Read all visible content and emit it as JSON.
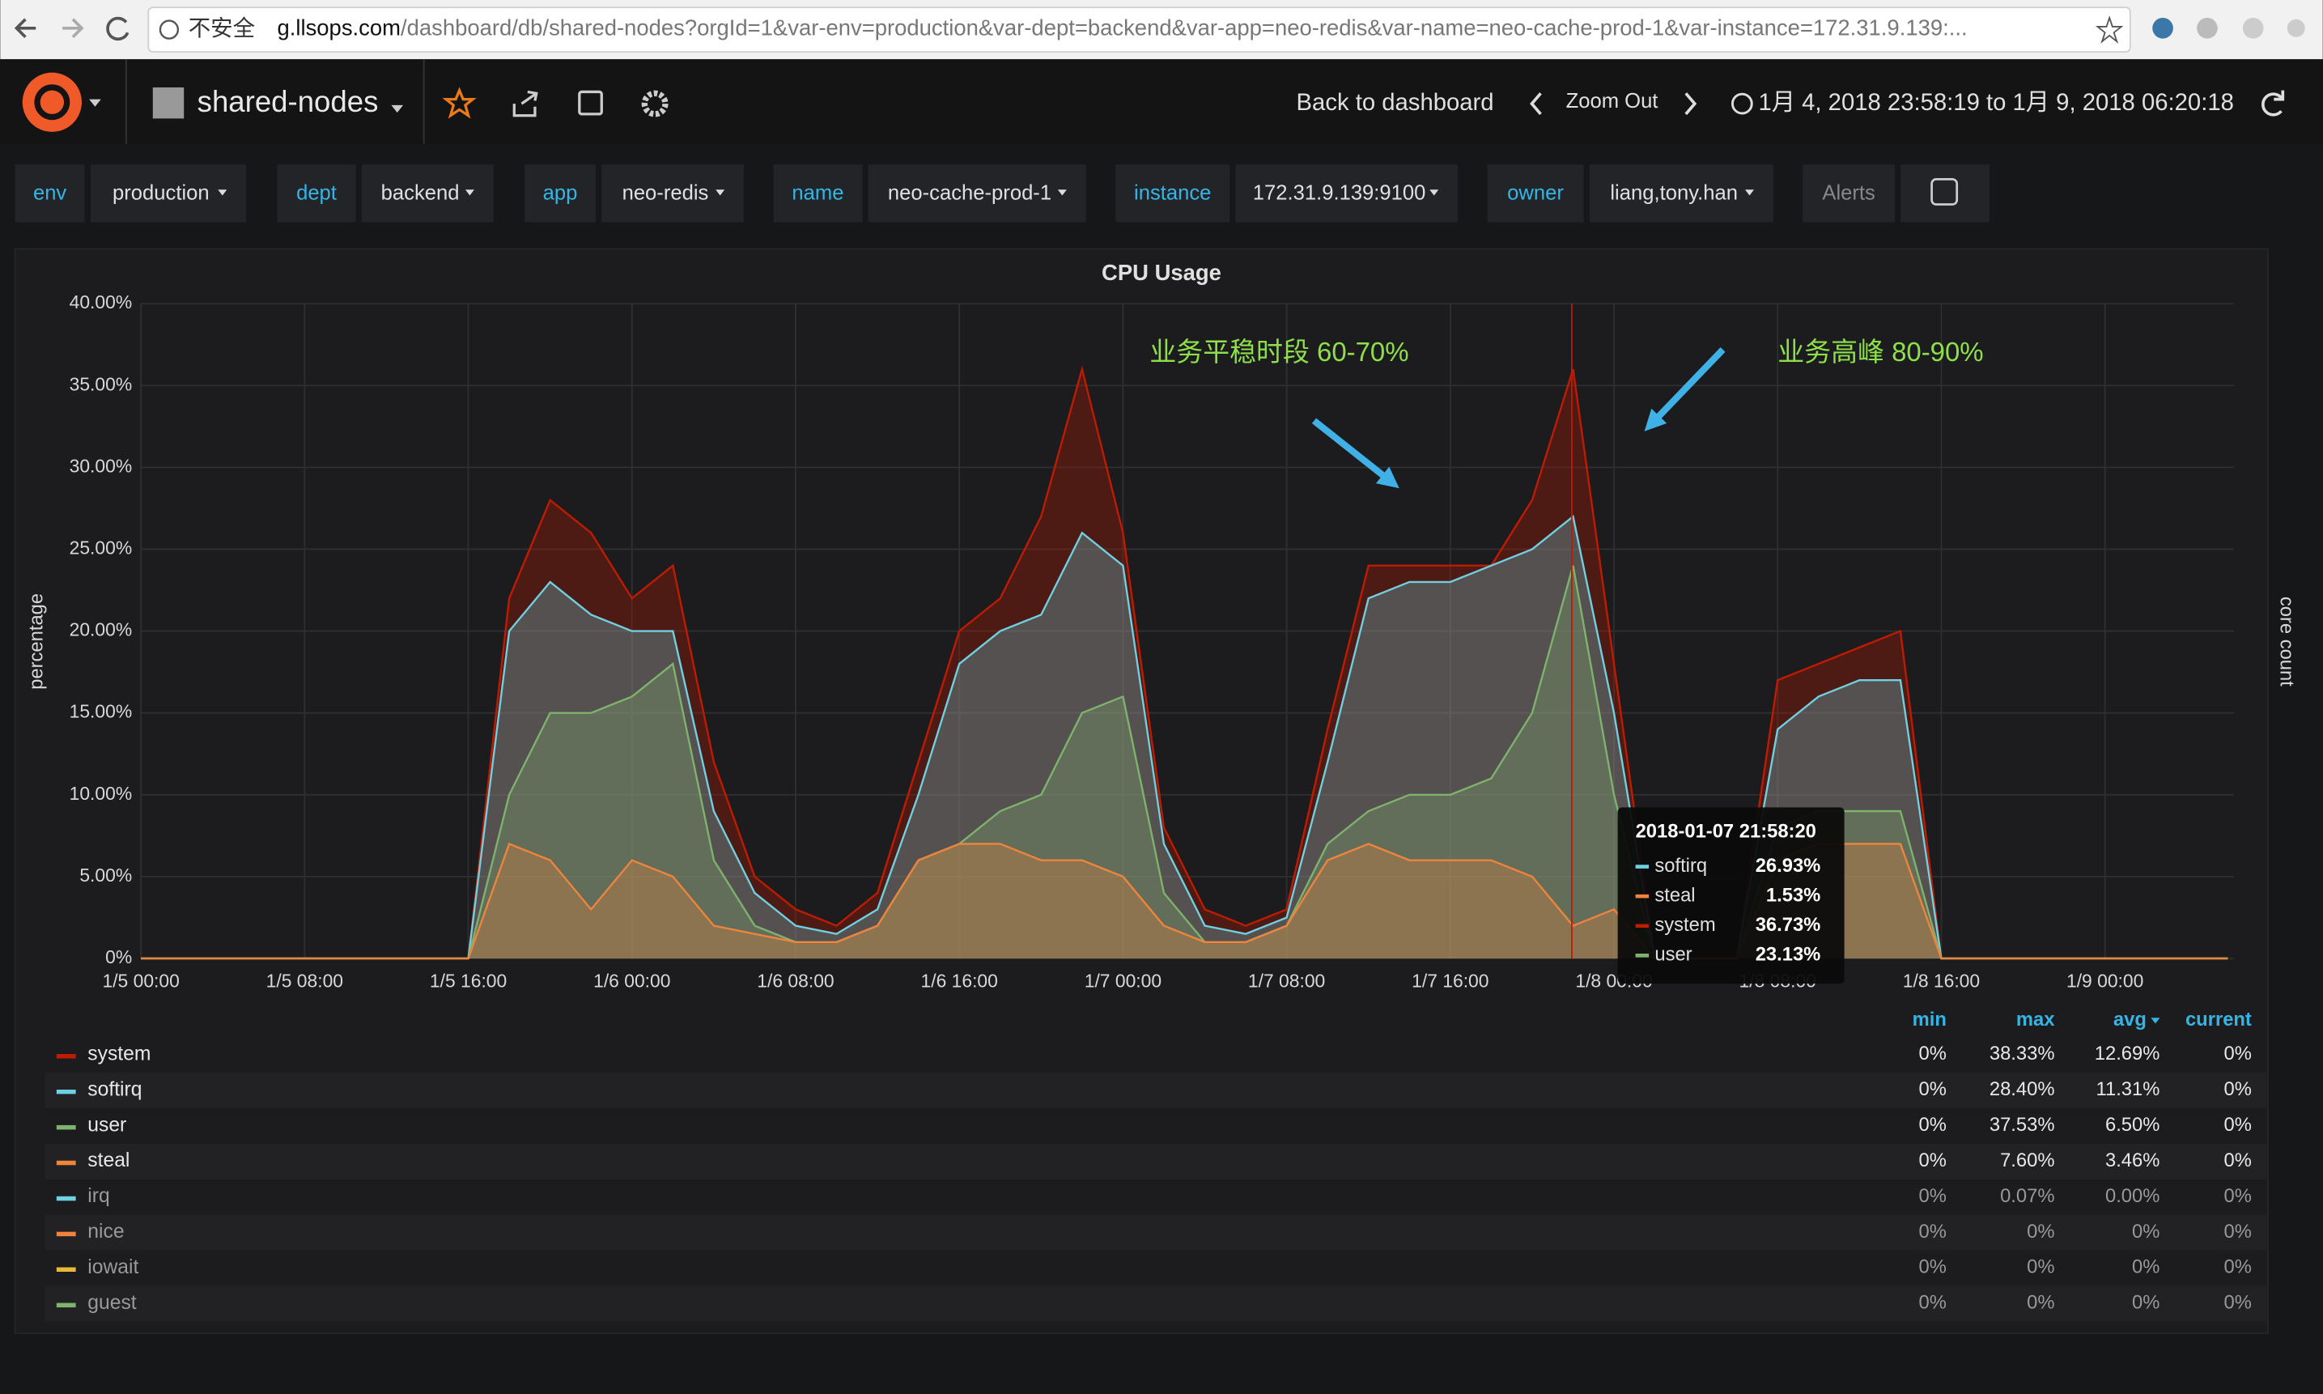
{
  "browser": {
    "insecure_label": "不安全",
    "url_host": "g.llsops.com",
    "url_path": "/dashboard/db/shared-nodes?orgId=1&var-env=production&var-dept=backend&var-app=neo-redis&var-name=neo-cache-prod-1&var-instance=172.31.9.139:..."
  },
  "navbar": {
    "dashboard_title": "shared-nodes",
    "back": "Back to dashboard",
    "zoom_out": "Zoom Out",
    "time_range": "1月 4, 2018 23:58:19 to 1月 9, 2018 06:20:18"
  },
  "variables": [
    {
      "label": "env",
      "value": "production"
    },
    {
      "label": "dept",
      "value": "backend"
    },
    {
      "label": "app",
      "value": "neo-redis"
    },
    {
      "label": "name",
      "value": "neo-cache-prod-1"
    },
    {
      "label": "instance",
      "value": "172.31.9.139:9100"
    },
    {
      "label": "owner",
      "value": "liang,tony.han"
    }
  ],
  "alerts_label": "Alerts",
  "chart_data": {
    "type": "area",
    "title": "CPU Usage",
    "y_label": "percentage",
    "y2_label": "core count",
    "grid": true,
    "x": [
      0,
      2,
      4,
      6,
      8,
      10,
      12,
      14,
      16,
      18,
      20,
      22,
      24,
      26,
      28,
      30,
      32,
      34,
      36,
      38,
      40,
      42,
      44,
      46,
      48,
      50,
      52,
      54,
      56,
      58,
      60,
      62,
      64,
      66,
      68,
      70,
      72,
      74,
      76,
      78,
      80,
      82,
      84,
      86,
      88,
      90,
      92,
      94,
      96,
      98,
      100,
      102
    ],
    "xlim": [
      0,
      102.3
    ],
    "xticks": [
      {
        "value": 0,
        "label": "1/5 00:00"
      },
      {
        "value": 8,
        "label": "1/5 08:00"
      },
      {
        "value": 16,
        "label": "1/5 16:00"
      },
      {
        "value": 24,
        "label": "1/6 00:00"
      },
      {
        "value": 32,
        "label": "1/6 08:00"
      },
      {
        "value": 40,
        "label": "1/6 16:00"
      },
      {
        "value": 48,
        "label": "1/7 00:00"
      },
      {
        "value": 56,
        "label": "1/7 08:00"
      },
      {
        "value": 64,
        "label": "1/7 16:00"
      },
      {
        "value": 72,
        "label": "1/8 00:00"
      },
      {
        "value": 80,
        "label": "1/8 08:00"
      },
      {
        "value": 88,
        "label": "1/8 16:00"
      },
      {
        "value": 96,
        "label": "1/9 00:00"
      }
    ],
    "ylim": [
      0,
      40
    ],
    "yticks": [
      {
        "value": 0,
        "label": "0%"
      },
      {
        "value": 5,
        "label": "5.00%"
      },
      {
        "value": 10,
        "label": "10.00%"
      },
      {
        "value": 15,
        "label": "15.00%"
      },
      {
        "value": 20,
        "label": "20.00%"
      },
      {
        "value": 25,
        "label": "25.00%"
      },
      {
        "value": 30,
        "label": "30.00%"
      },
      {
        "value": 35,
        "label": "35.00%"
      },
      {
        "value": 40,
        "label": "40.00%"
      }
    ],
    "series": [
      {
        "name": "system",
        "color": "#bf1b00",
        "values": [
          0,
          0,
          0,
          0,
          0,
          0,
          0,
          0,
          0,
          22,
          28,
          26,
          22,
          24,
          12,
          5,
          3,
          2,
          4,
          12,
          20,
          22,
          27,
          36,
          26,
          8,
          3,
          2,
          3,
          14,
          24,
          24,
          24,
          24,
          28,
          36,
          18,
          0,
          0,
          0,
          17,
          18,
          19,
          20,
          0,
          0,
          0,
          0,
          0,
          0,
          0,
          0
        ]
      },
      {
        "name": "softirq",
        "color": "#6ed0e0",
        "values": [
          0,
          0,
          0,
          0,
          0,
          0,
          0,
          0,
          0,
          20,
          23,
          21,
          20,
          20,
          9,
          4,
          2,
          1.5,
          3,
          10,
          18,
          20,
          21,
          26,
          24,
          7,
          2,
          1.5,
          2.5,
          12,
          22,
          23,
          23,
          24,
          25,
          27,
          15,
          0,
          0,
          0,
          14,
          16,
          17,
          17,
          0,
          0,
          0,
          0,
          0,
          0,
          0,
          0
        ]
      },
      {
        "name": "user",
        "color": "#7eb26d",
        "values": [
          0,
          0,
          0,
          0,
          0,
          0,
          0,
          0,
          0,
          10,
          15,
          15,
          16,
          18,
          6,
          2,
          1,
          1,
          2,
          6,
          7,
          9,
          10,
          15,
          16,
          4,
          1,
          1,
          2,
          7,
          9,
          10,
          10,
          11,
          15,
          24,
          10,
          0,
          0,
          0,
          8,
          9,
          9,
          9,
          0,
          0,
          0,
          0,
          0,
          0,
          0,
          0
        ]
      },
      {
        "name": "steal",
        "color": "#ef843c",
        "values": [
          0,
          0,
          0,
          0,
          0,
          0,
          0,
          0,
          0,
          7,
          6,
          3,
          6,
          5,
          2,
          1.5,
          1,
          1,
          2,
          6,
          7,
          7,
          6,
          6,
          5,
          2,
          1,
          1,
          2,
          6,
          7,
          6,
          6,
          6,
          5,
          2,
          3,
          0,
          0,
          0,
          6,
          7,
          7,
          7,
          0,
          0,
          0,
          0,
          0,
          0,
          0,
          0
        ]
      }
    ],
    "extra_series": [
      {
        "name": "irq",
        "color": "#6ed0e0"
      },
      {
        "name": "nice",
        "color": "#ef843c"
      },
      {
        "name": "iowait",
        "color": "#eab839"
      },
      {
        "name": "guest",
        "color": "#7eb26d"
      }
    ],
    "legend_headers": [
      "min",
      "max",
      "avg",
      "current"
    ],
    "legend_stats": [
      [
        "0%",
        "38.33%",
        "12.69%",
        "0%"
      ],
      [
        "0%",
        "28.40%",
        "11.31%",
        "0%"
      ],
      [
        "0%",
        "37.53%",
        "6.50%",
        "0%"
      ],
      [
        "0%",
        "7.60%",
        "3.46%",
        "0%"
      ],
      [
        "0%",
        "0.07%",
        "0.00%",
        "0%"
      ],
      [
        "0%",
        "0%",
        "0%",
        "0%"
      ],
      [
        "0%",
        "0%",
        "0%",
        "0%"
      ],
      [
        "0%",
        "0%",
        "0%",
        "0%"
      ]
    ],
    "annotations": [
      {
        "text": "业务平稳时段 60-70%"
      },
      {
        "text": "业务高峰 80-90%"
      }
    ],
    "tooltip": {
      "time": "2018-01-07 21:58:20",
      "items": [
        {
          "name": "softirq",
          "value": "26.93%"
        },
        {
          "name": "steal",
          "value": "1.53%"
        },
        {
          "name": "system",
          "value": "36.73%"
        },
        {
          "name": "user",
          "value": "23.13%"
        }
      ]
    }
  }
}
